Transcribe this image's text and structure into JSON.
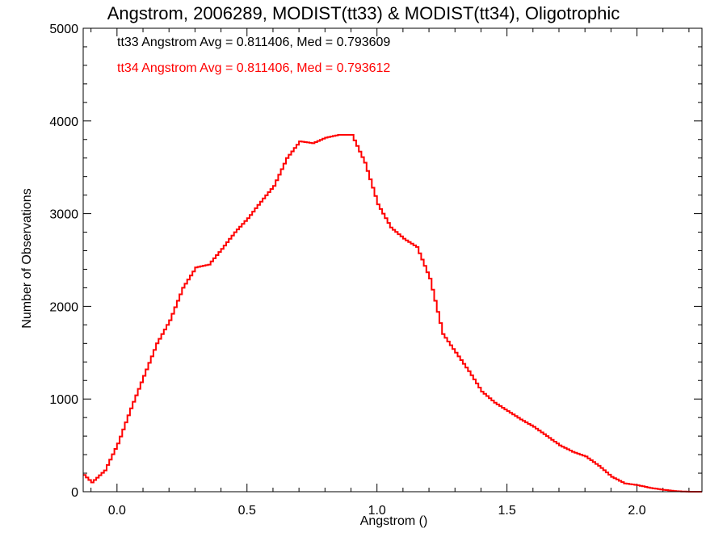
{
  "chart_data": {
    "type": "histogram",
    "title": "Angstrom, 2006289, MODIST(tt33) & MODIST(tt34), Oligotrophic",
    "xlabel": "Angstrom ()",
    "ylabel": "Number of Observations",
    "xlim": [
      -0.13,
      2.25
    ],
    "ylim": [
      0,
      5000
    ],
    "x_ticks": [
      0.0,
      0.5,
      1.0,
      1.5,
      2.0
    ],
    "x_tick_labels": [
      "0.0",
      "0.5",
      "1.0",
      "1.5",
      "2.0"
    ],
    "y_ticks": [
      0,
      1000,
      2000,
      3000,
      4000,
      5000
    ],
    "y_tick_labels": [
      "0",
      "1000",
      "2000",
      "3000",
      "4000",
      "5000"
    ],
    "annotations": [
      {
        "text": "tt33 Angstrom Avg = 0.811406, Med = 0.793609",
        "color": "#000000"
      },
      {
        "text": "tt34 Angstrom Avg = 0.811406, Med = 0.793612",
        "color": "#ff0000"
      }
    ],
    "series": [
      {
        "color": "#ff0000",
        "x": [
          -0.13,
          -0.1,
          -0.05,
          0.0,
          0.05,
          0.1,
          0.15,
          0.2,
          0.25,
          0.3,
          0.35,
          0.4,
          0.45,
          0.5,
          0.55,
          0.6,
          0.65,
          0.7,
          0.75,
          0.8,
          0.85,
          0.9,
          0.95,
          1.0,
          1.05,
          1.1,
          1.15,
          1.2,
          1.25,
          1.3,
          1.35,
          1.4,
          1.45,
          1.5,
          1.55,
          1.6,
          1.65,
          1.7,
          1.75,
          1.8,
          1.85,
          1.9,
          1.95,
          2.0,
          2.05,
          2.1,
          2.15,
          2.2,
          2.25
        ],
        "y": [
          180,
          100,
          230,
          520,
          900,
          1250,
          1600,
          1850,
          2200,
          2420,
          2450,
          2620,
          2800,
          2950,
          3130,
          3300,
          3600,
          3780,
          3760,
          3820,
          3850,
          3850,
          3550,
          3100,
          2850,
          2730,
          2640,
          2300,
          1700,
          1500,
          1300,
          1080,
          960,
          870,
          780,
          700,
          600,
          500,
          430,
          380,
          280,
          160,
          90,
          70,
          40,
          20,
          5,
          0,
          0
        ]
      }
    ]
  }
}
